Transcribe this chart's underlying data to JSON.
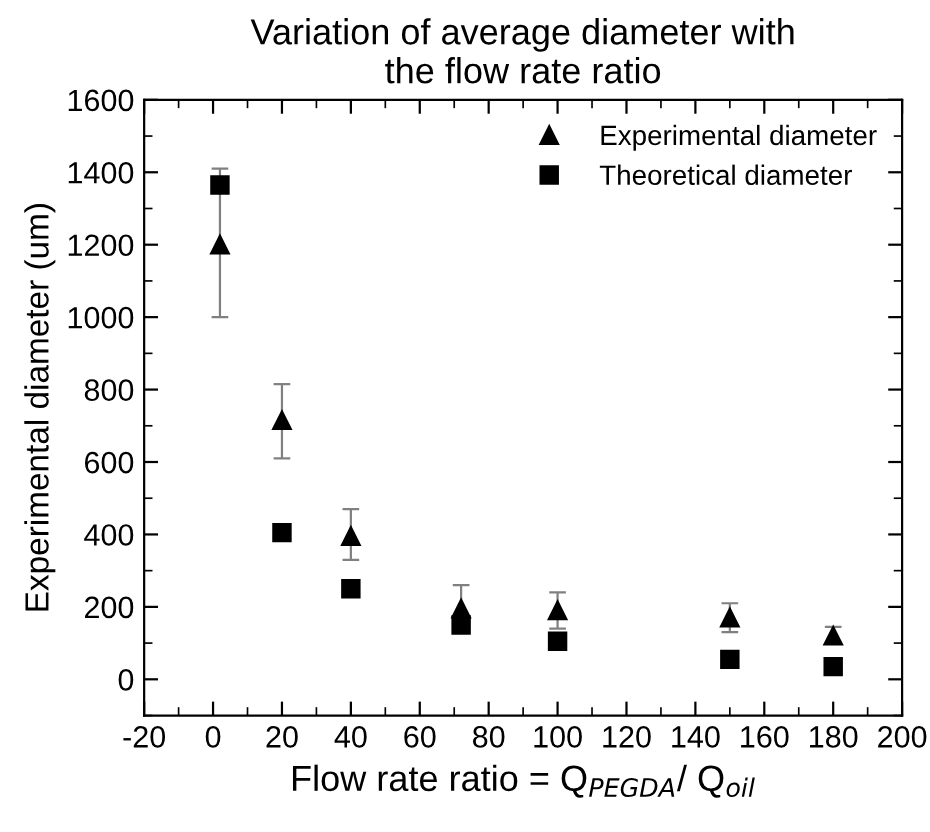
{
  "chart_data": {
    "type": "scatter",
    "title": "Variation of average diameter with\nthe flow rate ratio",
    "xlabel": "Flow rate ratio = Q$_{PEGDA}$/ Q$_{oil}$",
    "ylabel": "Experimental diameter (um)",
    "series": [
      {
        "name": "Experimental diameter",
        "color": "#000000",
        "marker": "triangle",
        "x": [
          2,
          20,
          40,
          72,
          100,
          150,
          180
        ],
        "values": [
          1200,
          715,
          395,
          195,
          190,
          170,
          120
        ],
        "errors": [
          [
            1000,
            1410
          ],
          [
            610,
            815
          ],
          [
            330,
            470
          ],
          [
            140,
            260
          ],
          [
            140,
            240
          ],
          [
            130,
            210
          ],
          [
            100,
            145
          ]
        ]
      },
      {
        "name": "Theoretical diameter",
        "color": "#000000",
        "marker": "square",
        "x": [
          2,
          20,
          40,
          72,
          100,
          150,
          180
        ],
        "values": [
          1365,
          405,
          250,
          150,
          105,
          55,
          35
        ]
      }
    ],
    "xlim": [
      -20,
      200
    ],
    "xticks": [
      -20,
      0,
      20,
      40,
      60,
      80,
      100,
      120,
      140,
      160,
      180,
      200
    ],
    "ylim": [
      -100,
      1600
    ],
    "yticks": [
      0,
      200,
      400,
      600,
      800,
      1000,
      1200,
      1400,
      1600
    ],
    "legend": "top right",
    "grid": false
  }
}
